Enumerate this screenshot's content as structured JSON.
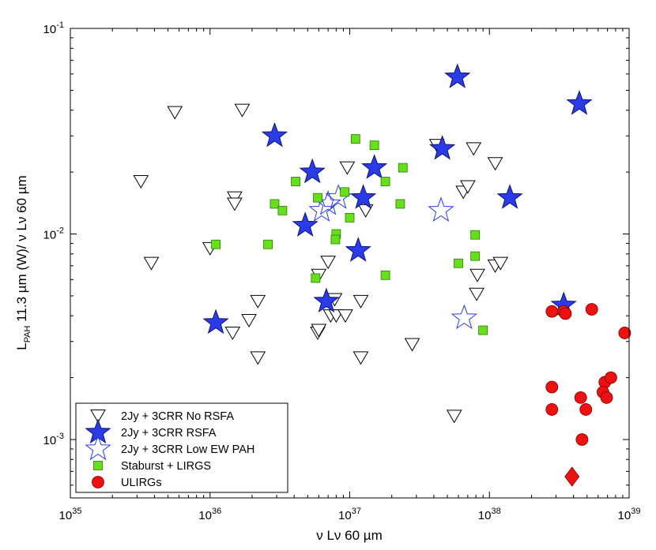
{
  "colors": {
    "no_rsfa_fill": "#ffffff",
    "no_rsfa_stroke": "#000000",
    "rsfa_fill": "#2b3be8",
    "rsfa_stroke": "#0d1470",
    "low_ew_stroke": "#2b3be8",
    "starburst_fill": "#66e01a",
    "starburst_stroke": "#2a7a06",
    "ulirg_fill": "#ee1111",
    "ulirg_stroke": "#7a0000",
    "axis": "#000000",
    "background": "#ffffff"
  },
  "chart_data": {
    "type": "scatter",
    "title": "",
    "xlabel": "ν Lν 60 µm",
    "ylabel_main": "L",
    "ylabel_sub": "PAH",
    "ylabel_rest": " 11.3 µm (W)/ ν Lν 60 µm",
    "xscale": "log",
    "yscale": "log",
    "xlim": [
      1e+35,
      1e+39
    ],
    "ylim": [
      0.00052,
      0.1
    ],
    "xticks": [
      {
        "value": 1e+35,
        "base": "10",
        "exp": "35"
      },
      {
        "value": 1e+36,
        "base": "10",
        "exp": "36"
      },
      {
        "value": 1e+37,
        "base": "10",
        "exp": "37"
      },
      {
        "value": 1e+38,
        "base": "10",
        "exp": "38"
      },
      {
        "value": 1e+39,
        "base": "10",
        "exp": "39"
      }
    ],
    "yticks": [
      {
        "value": 0.001,
        "base": "10",
        "exp": "-3"
      },
      {
        "value": 0.01,
        "base": "10",
        "exp": "-2"
      },
      {
        "value": 0.1,
        "base": "10",
        "exp": "-1"
      }
    ],
    "grid": false,
    "legend_position": "bottom-left",
    "series": [
      {
        "name": "2Jy + 3CRR No RSFA",
        "marker": "triangle-down",
        "points": [
          [
            5.6e+35,
            0.039
          ],
          [
            1.7e+36,
            0.04
          ],
          [
            3.2e+35,
            0.018
          ],
          [
            3.8e+35,
            0.0072
          ],
          [
            1.5e+36,
            0.015
          ],
          [
            1.5e+36,
            0.014
          ],
          [
            1e+36,
            0.0085
          ],
          [
            2.2e+36,
            0.0047
          ],
          [
            1.9e+36,
            0.0038
          ],
          [
            1.45e+36,
            0.0033
          ],
          [
            2.2e+36,
            0.0025
          ],
          [
            6e+36,
            0.0063
          ],
          [
            7e+36,
            0.0073
          ],
          [
            5.9e+36,
            0.0033
          ],
          [
            6e+36,
            0.0034
          ],
          [
            7.3e+36,
            0.004
          ],
          [
            7.8e+36,
            0.0048
          ],
          [
            8e+36,
            0.004
          ],
          [
            9.3e+36,
            0.004
          ],
          [
            9.6e+36,
            0.021
          ],
          [
            1.2e+37,
            0.0047
          ],
          [
            1.2e+37,
            0.0025
          ],
          [
            1.3e+37,
            0.013
          ],
          [
            4.2e+37,
            0.027
          ],
          [
            2.8e+37,
            0.0029
          ],
          [
            6.5e+37,
            0.016
          ],
          [
            7e+37,
            0.017
          ],
          [
            7.7e+37,
            0.026
          ],
          [
            8.2e+37,
            0.0063
          ],
          [
            8.1e+37,
            0.0051
          ],
          [
            1.1e+38,
            0.022
          ],
          [
            1.1e+38,
            0.007
          ],
          [
            1.2e+38,
            0.0072
          ],
          [
            5.6e+37,
            0.0013
          ]
        ]
      },
      {
        "name": "2Jy + 3CRR RSFA",
        "marker": "star-filled",
        "points": [
          [
            5.9e+37,
            0.058
          ],
          [
            4.4e+38,
            0.043
          ],
          [
            2.9e+36,
            0.03
          ],
          [
            5.4e+36,
            0.02
          ],
          [
            1.5e+37,
            0.021
          ],
          [
            4.6e+37,
            0.026
          ],
          [
            1.25e+37,
            0.015
          ],
          [
            1.4e+38,
            0.015
          ],
          [
            4.8e+36,
            0.011
          ],
          [
            1.15e+37,
            0.0083
          ],
          [
            6.8e+36,
            0.0047
          ],
          [
            1.1e+36,
            0.0037
          ],
          [
            3.4e+38,
            0.0045
          ]
        ]
      },
      {
        "name": "2Jy + 3CRR Low EW PAH",
        "marker": "star-open",
        "points": [
          [
            6.3e+36,
            0.013
          ],
          [
            7e+36,
            0.014
          ],
          [
            8.3e+36,
            0.015
          ],
          [
            4.5e+37,
            0.013
          ],
          [
            6.6e+37,
            0.0039
          ]
        ]
      },
      {
        "name": "Staburst + LIRGS",
        "marker": "square",
        "points": [
          [
            1.1e+37,
            0.029
          ],
          [
            1.5e+37,
            0.027
          ],
          [
            2.4e+37,
            0.021
          ],
          [
            4.1e+36,
            0.018
          ],
          [
            1.8e+37,
            0.018
          ],
          [
            2.9e+36,
            0.014
          ],
          [
            3.3e+36,
            0.013
          ],
          [
            5.9e+36,
            0.015
          ],
          [
            9.2e+36,
            0.016
          ],
          [
            1e+37,
            0.012
          ],
          [
            2.3e+37,
            0.014
          ],
          [
            1.1e+36,
            0.0089
          ],
          [
            2.6e+36,
            0.0089
          ],
          [
            8e+36,
            0.01
          ],
          [
            7.9e+36,
            0.0094
          ],
          [
            5.7e+36,
            0.0061
          ],
          [
            1.8e+37,
            0.0063
          ],
          [
            6e+37,
            0.0072
          ],
          [
            7.9e+37,
            0.0099
          ],
          [
            7.9e+37,
            0.0078
          ],
          [
            9e+37,
            0.0034
          ]
        ]
      },
      {
        "name": "ULIRGs",
        "marker": "circle",
        "points": [
          [
            2.8e+38,
            0.0042
          ],
          [
            3.4e+38,
            0.0042
          ],
          [
            3.5e+38,
            0.0041
          ],
          [
            5.4e+38,
            0.0043
          ],
          [
            9.3e+38,
            0.0033
          ],
          [
            2.8e+38,
            0.0018
          ],
          [
            2.8e+38,
            0.0014
          ],
          [
            4.5e+38,
            0.0016
          ],
          [
            4.9e+38,
            0.0014
          ],
          [
            6.7e+38,
            0.0019
          ],
          [
            6.5e+38,
            0.0017
          ],
          [
            6.9e+38,
            0.0016
          ],
          [
            7.4e+38,
            0.002
          ],
          [
            4.6e+38,
            0.001
          ]
        ],
        "extra_points": [
          {
            "marker": "diamond",
            "x": 3.9e+38,
            "y": 0.00066
          }
        ]
      }
    ]
  }
}
